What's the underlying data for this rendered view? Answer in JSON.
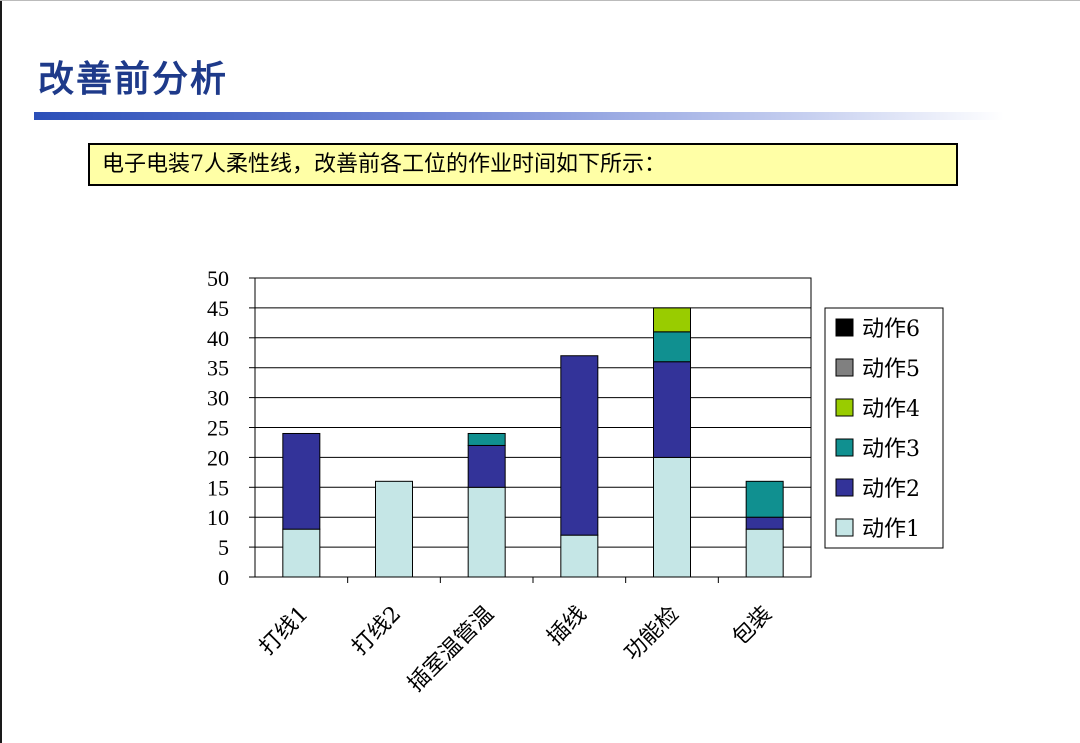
{
  "page": {
    "title": "改善前分析",
    "subtitle": "电子电装7人柔性线，改善前各工位的作业时间如下所示："
  },
  "chart_data": {
    "type": "bar",
    "stacked": true,
    "title": "",
    "xlabel": "",
    "ylabel": "",
    "categories": [
      "打线1",
      "打线2",
      "插室温管温",
      "插线",
      "功能检",
      "包装"
    ],
    "ylim": [
      0,
      50
    ],
    "yticks": [
      0,
      5,
      10,
      15,
      20,
      25,
      30,
      35,
      40,
      45,
      50
    ],
    "grid": true,
    "legend_position": "right",
    "legend_order": [
      "动作6",
      "动作5",
      "动作4",
      "动作3",
      "动作2",
      "动作1"
    ],
    "series": [
      {
        "name": "动作1",
        "color": "#c5e6e6",
        "values": [
          8,
          16,
          15,
          7,
          20,
          8
        ]
      },
      {
        "name": "动作2",
        "color": "#333399",
        "values": [
          16,
          0,
          7,
          30,
          16,
          2
        ]
      },
      {
        "name": "动作3",
        "color": "#109090",
        "values": [
          0,
          0,
          2,
          0,
          5,
          6
        ]
      },
      {
        "name": "动作4",
        "color": "#99cc00",
        "values": [
          0,
          0,
          0,
          0,
          4,
          0
        ]
      },
      {
        "name": "动作5",
        "color": "#808080",
        "values": [
          0,
          0,
          0,
          0,
          0,
          0
        ]
      },
      {
        "name": "动作6",
        "color": "#000000",
        "values": [
          0,
          0,
          0,
          0,
          0,
          0
        ]
      }
    ]
  }
}
